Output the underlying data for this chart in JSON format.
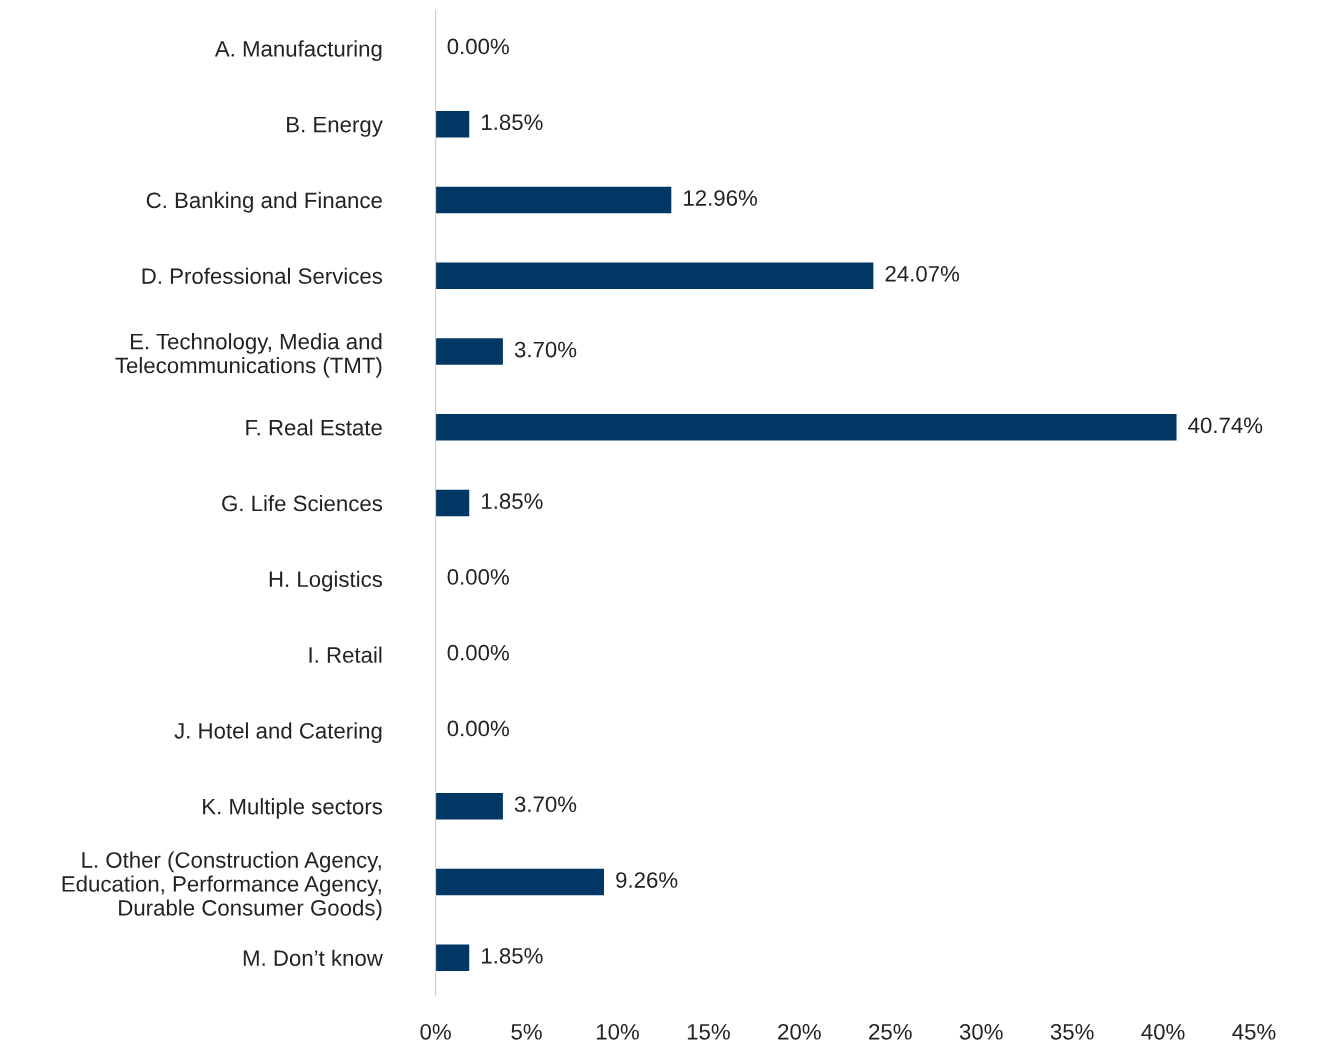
{
  "chart_data": {
    "type": "bar",
    "orientation": "horizontal",
    "categories": [
      "A. Manufacturing",
      "B. Energy",
      "C. Banking and Finance",
      "D. Professional Services",
      "E. Technology, Media and\nTelecommunications (TMT)",
      "F. Real Estate",
      "G. Life Sciences",
      "H. Logistics",
      "I. Retail",
      "J. Hotel and Catering",
      "K. Multiple sectors",
      "L. Other (Construction Agency,\nEducation, Performance Agency,\nDurable Consumer Goods)",
      "M. Don’t know"
    ],
    "values": [
      0.0,
      1.85,
      12.96,
      24.07,
      3.7,
      40.74,
      1.85,
      0.0,
      0.0,
      0.0,
      3.7,
      9.26,
      1.85
    ],
    "value_labels": [
      "0.00%",
      "1.85%",
      "12.96%",
      "24.07%",
      "3.70%",
      "40.74%",
      "1.85%",
      "0.00%",
      "0.00%",
      "0.00%",
      "3.70%",
      "9.26%",
      "1.85%"
    ],
    "color": "#003764",
    "xlim": [
      0,
      45
    ],
    "xticks": [
      {
        "value": 0,
        "label": "0%"
      },
      {
        "value": 5,
        "label": "5%"
      },
      {
        "value": 10,
        "label": "10%"
      },
      {
        "value": 15,
        "label": "15%"
      },
      {
        "value": 20,
        "label": "20%"
      },
      {
        "value": 25,
        "label": "25%"
      },
      {
        "value": 30,
        "label": "30%"
      },
      {
        "value": 35,
        "label": "35%"
      },
      {
        "value": 40,
        "label": "40%"
      },
      {
        "value": 45,
        "label": "45%"
      }
    ],
    "grid": false,
    "legend": false
  }
}
